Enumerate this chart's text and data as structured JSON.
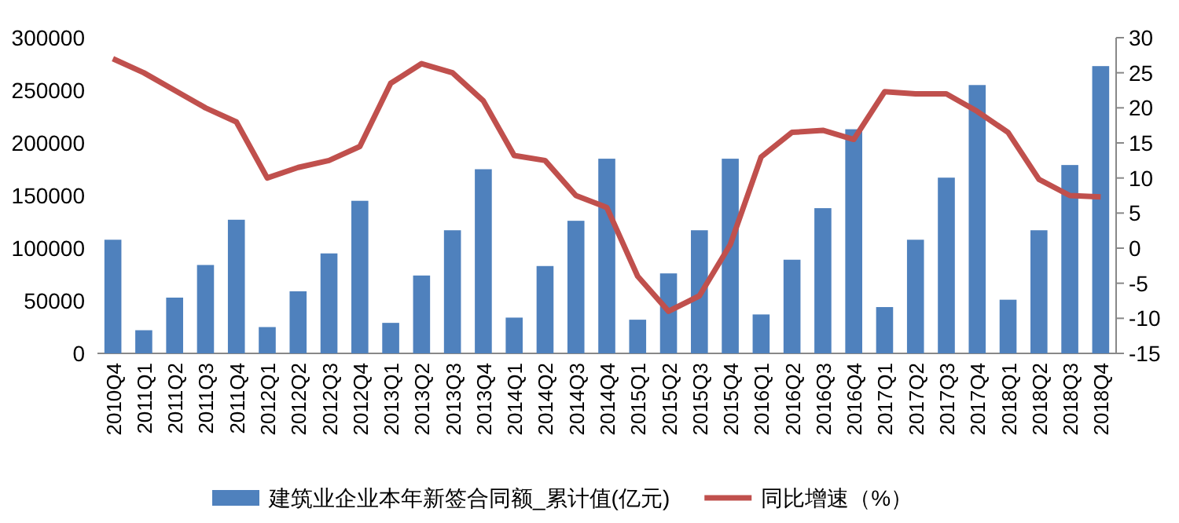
{
  "chart_data": {
    "type": "bar",
    "categories": [
      "2010Q4",
      "2011Q1",
      "2011Q2",
      "2011Q3",
      "2011Q4",
      "2012Q1",
      "2012Q2",
      "2012Q3",
      "2012Q4",
      "2013Q1",
      "2013Q2",
      "2013Q3",
      "2013Q4",
      "2014Q1",
      "2014Q2",
      "2014Q3",
      "2014Q4",
      "2015Q1",
      "2015Q2",
      "2015Q3",
      "2015Q4",
      "2016Q1",
      "2016Q2",
      "2016Q3",
      "2016Q4",
      "2017Q1",
      "2017Q2",
      "2017Q3",
      "2017Q4",
      "2018Q1",
      "2018Q2",
      "2018Q3",
      "2018Q4"
    ],
    "series": [
      {
        "name": "建筑业企业本年新签合同额_累计值(亿元)",
        "color": "#4f81bd",
        "values": [
          108000,
          22000,
          53000,
          84000,
          127000,
          25000,
          59000,
          95000,
          145000,
          29000,
          74000,
          117000,
          175000,
          34000,
          83000,
          126000,
          185000,
          32000,
          76000,
          117000,
          185000,
          37000,
          89000,
          138000,
          213000,
          44000,
          108000,
          167000,
          255000,
          51000,
          117000,
          179000,
          273000
        ]
      },
      {
        "name": "同比增速（%）",
        "type": "line",
        "axis": "y2",
        "color": "#c0504d",
        "values": [
          27,
          25,
          22.5,
          20,
          18,
          10,
          11.5,
          12.5,
          14.5,
          23.5,
          26.3,
          25,
          21,
          13.2,
          12.5,
          7.5,
          5.8,
          -4,
          -9,
          -6.8,
          0.5,
          13,
          16.5,
          16.8,
          15.5,
          22.3,
          22,
          22,
          19.5,
          16.5,
          9.8,
          7.5,
          7.3
        ]
      }
    ],
    "ylim": [
      0,
      300000
    ],
    "yticks": [
      0,
      50000,
      100000,
      150000,
      200000,
      250000,
      300000
    ],
    "y2lim": [
      -15,
      30
    ],
    "y2ticks": [
      -15,
      -10,
      -5,
      0,
      5,
      10,
      15,
      20,
      25,
      30
    ],
    "legend": "bottom"
  }
}
